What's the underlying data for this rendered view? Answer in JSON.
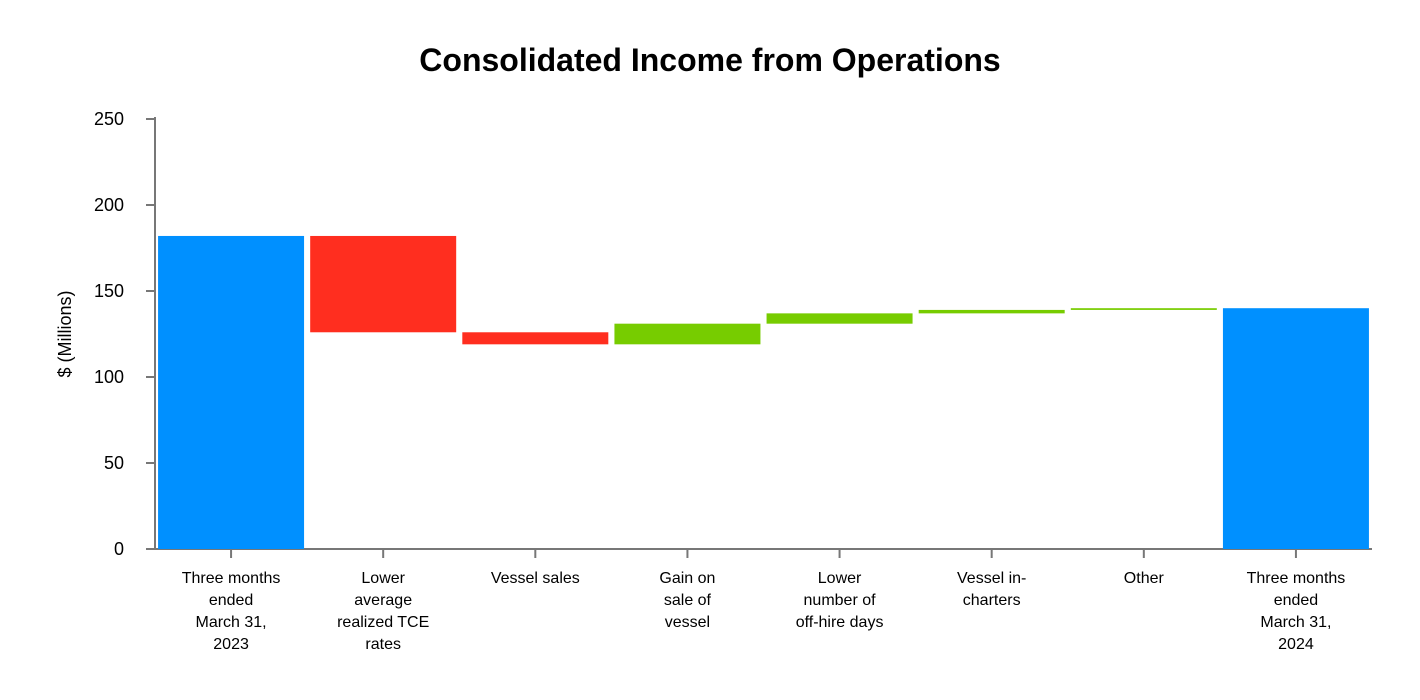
{
  "chart_data": {
    "type": "waterfall",
    "title": "Consolidated Income from Operations",
    "xlabel": "",
    "ylabel": "$ (Millions)",
    "ylim": [
      0,
      250
    ],
    "yticks": [
      0,
      50,
      100,
      150,
      200,
      250
    ],
    "grid": false,
    "categories": [
      "Three months ended March 31, 2023",
      "Lower average realized TCE rates",
      "Vessel sales",
      "Gain on sale of vessel",
      "Lower number of off-hire days",
      "Vessel in-charters",
      "Other",
      "Three months ended March 31, 2024"
    ],
    "category_lines": [
      [
        "Three months",
        "ended",
        "March 31,",
        "2023"
      ],
      [
        "Lower",
        "average",
        "realized TCE",
        "rates"
      ],
      [
        "Vessel sales"
      ],
      [
        "Gain on",
        "sale of",
        "vessel"
      ],
      [
        "Lower",
        "number of",
        "off-hire days"
      ],
      [
        "Vessel in-",
        "charters"
      ],
      [
        "Other"
      ],
      [
        "Three months",
        "ended",
        "March 31,",
        "2024"
      ]
    ],
    "bars": [
      {
        "kind": "total",
        "value": 182
      },
      {
        "kind": "delta",
        "value": -56
      },
      {
        "kind": "delta",
        "value": -7
      },
      {
        "kind": "delta",
        "value": 12
      },
      {
        "kind": "delta",
        "value": 6
      },
      {
        "kind": "delta",
        "value": 2
      },
      {
        "kind": "delta",
        "value": 1
      },
      {
        "kind": "total",
        "value": 140
      }
    ],
    "colors": {
      "total": "#0090ff",
      "decrease": "#ff2e1f",
      "increase": "#77cc00",
      "axis": "#777777"
    }
  }
}
